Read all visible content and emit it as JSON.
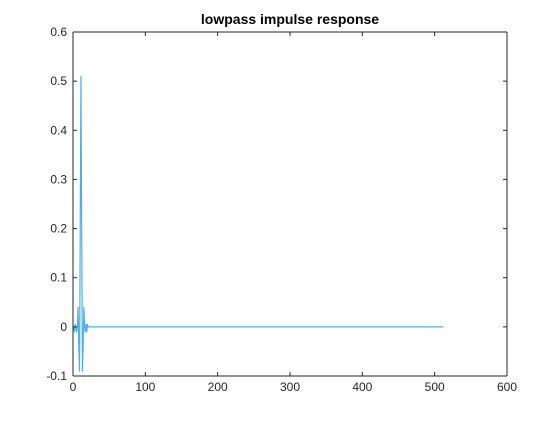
{
  "chart_data": {
    "type": "line",
    "title": "lowpass impulse response",
    "xlabel": "",
    "ylabel": "",
    "xlim": [
      0,
      600
    ],
    "ylim": [
      -0.1,
      0.6
    ],
    "xticks": [
      0,
      100,
      200,
      300,
      400,
      500,
      600
    ],
    "yticks": [
      -0.1,
      0,
      0.1,
      0.2,
      0.3,
      0.4,
      0.5,
      0.6
    ],
    "xtick_labels": [
      "0",
      "100",
      "200",
      "300",
      "400",
      "500",
      "600"
    ],
    "ytick_labels": [
      "-0.1",
      "0",
      "0.1",
      "0.2",
      "0.3",
      "0.4",
      "0.5",
      "0.6"
    ],
    "grid": false,
    "legend": "none",
    "series": [
      {
        "color": "#4dafe6",
        "x": [
          1,
          2,
          3,
          4,
          5,
          6,
          7,
          8,
          9,
          10,
          11,
          12,
          13,
          14,
          15,
          16,
          17,
          18,
          19,
          20,
          21,
          22,
          512
        ],
        "y": [
          0,
          -0.01,
          0.005,
          0.0,
          -0.01,
          0.0,
          0.04,
          -0.04,
          -0.09,
          0.2,
          0.51,
          0.2,
          -0.09,
          -0.04,
          0.04,
          0.0,
          -0.01,
          0.005,
          -0.01,
          0.005,
          0,
          0,
          0
        ]
      }
    ]
  }
}
